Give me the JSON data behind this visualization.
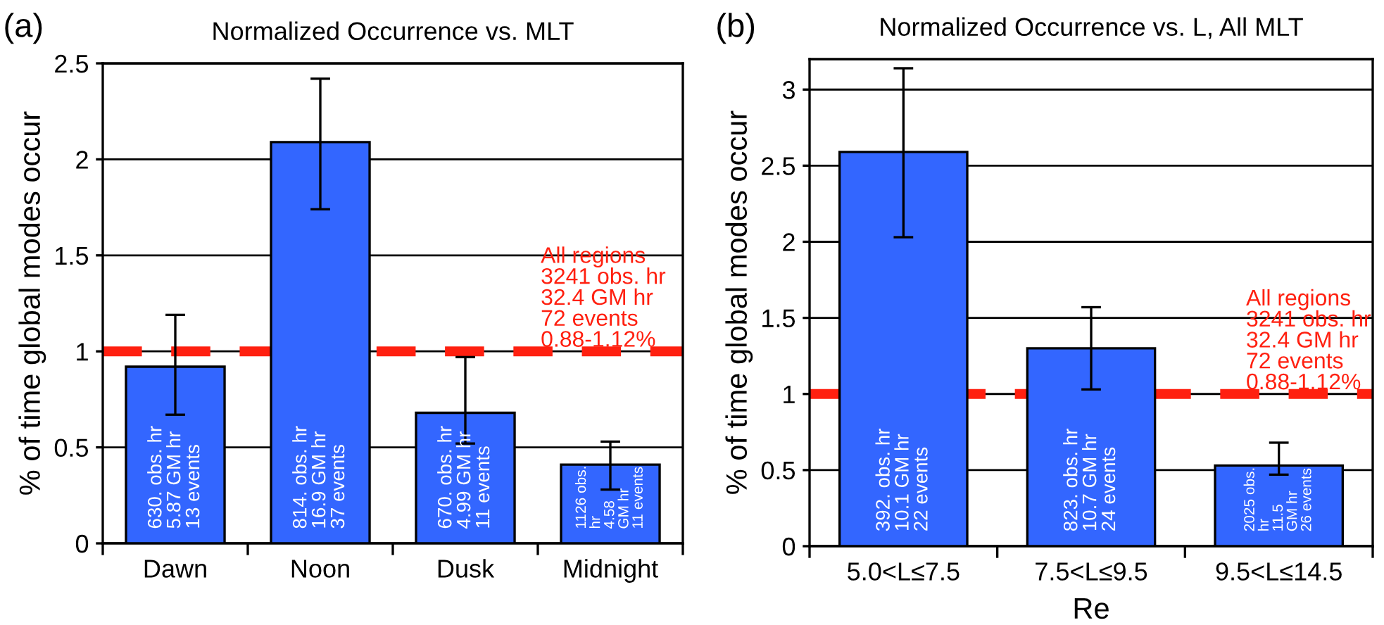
{
  "chart_data": [
    {
      "type": "bar",
      "title": "Normalized Occurrence vs. MLT",
      "ylabel": "% of time global modes occur",
      "categories": [
        "Dawn",
        "Noon",
        "Dusk",
        "Midnight"
      ],
      "series": [
        {
          "color": "#3366ff",
          "values": [
            0.92,
            2.09,
            0.68,
            0.41
          ],
          "errors": [
            [
              0.67,
              1.19
            ],
            [
              1.74,
              2.42
            ],
            [
              0.52,
              0.97
            ],
            [
              0.28,
              0.53
            ]
          ]
        }
      ],
      "ylim": [
        0,
        2.5
      ],
      "yticks": [
        0,
        0.5,
        1,
        1.5,
        2,
        2.5
      ],
      "grid": "y",
      "legend": false,
      "ref_lines": [
        {
          "axis": "y",
          "value": 1,
          "label": "All regions\n3241 obs. hr\n32.4 GM hr\n72 events\n0.88-1.12%",
          "color": "#ff2010",
          "line_style": "dashed"
        }
      ],
      "annotations": [
        "(a)",
        {
          "text": "630. obs. hr\n5.87 GM hr\n13 events",
          "x": "Dawn",
          "y": 0
        },
        {
          "text": "814. obs. hr\n16.9 GM hr\n37 events",
          "x": "Noon",
          "y": 0
        },
        {
          "text": "670. obs. hr\n4.99 GM hr\n11 events",
          "x": "Dusk",
          "y": 0
        },
        {
          "text": "1126 obs.\nhr\n4.58\nGM hr\n11 events",
          "x": "Midnight",
          "y": 0
        }
      ]
    },
    {
      "type": "bar",
      "title": "Normalized Occurrence vs. L, All MLT",
      "ylabel": "% of time global modes occur",
      "xlabel": "Re",
      "categories": [
        "5.0<L≤7.5",
        "7.5<L≤9.5",
        "9.5<L≤14.5"
      ],
      "series": [
        {
          "color": "#3366ff",
          "values": [
            2.59,
            1.3,
            0.53
          ],
          "errors": [
            [
              2.03,
              3.14
            ],
            [
              1.03,
              1.57
            ],
            [
              0.47,
              0.68
            ]
          ]
        }
      ],
      "ylim": [
        0,
        3.2
      ],
      "yticks": [
        0,
        0.5,
        1,
        1.5,
        2,
        2.5,
        3
      ],
      "grid": "y",
      "legend": false,
      "ref_lines": [
        {
          "axis": "y",
          "value": 1,
          "label": "All regions\n3241 obs. hr\n32.4 GM hr\n72 events\n0.88-1.12%",
          "color": "#ff2010",
          "line_style": "dashed"
        }
      ],
      "annotations": [
        "(b)",
        {
          "text": "392. obs. hr\n10.1 GM hr\n22 events",
          "x": "5.0<L≤7.5",
          "y": 0
        },
        {
          "text": "823. obs. hr\n10.7 GM hr\n24 events",
          "x": "7.5<L≤9.5",
          "y": 0
        },
        {
          "text": "2025 obs.\nhr\n11.5\nGM hr\n26 events",
          "x": "9.5<L≤14.5",
          "y": 0
        }
      ]
    }
  ]
}
